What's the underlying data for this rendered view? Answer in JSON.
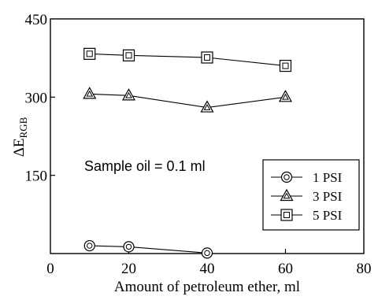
{
  "chart_data": {
    "type": "line",
    "xlabel": "Amount of petroleum ether, ml",
    "ylabel_main": "ΔE",
    "ylabel_sub": "RGB",
    "xlim": [
      0,
      80
    ],
    "ylim": [
      0,
      450
    ],
    "xticks": [
      0,
      20,
      40,
      60,
      80
    ],
    "yticks": [
      150,
      300,
      450
    ],
    "grid": false,
    "legend_position": "right",
    "annotation": "Sample oil = 0.1 ml",
    "series": [
      {
        "name": "1 PSI",
        "marker": "circle-dot",
        "x": [
          10,
          20,
          40
        ],
        "y": [
          15,
          13,
          1
        ]
      },
      {
        "name": "3 PSI",
        "marker": "triangle",
        "x": [
          10,
          20,
          40,
          60
        ],
        "y": [
          306,
          303,
          280,
          300
        ]
      },
      {
        "name": "5 PSI",
        "marker": "square",
        "x": [
          10,
          20,
          40,
          60
        ],
        "y": [
          383,
          380,
          376,
          360
        ]
      }
    ]
  }
}
